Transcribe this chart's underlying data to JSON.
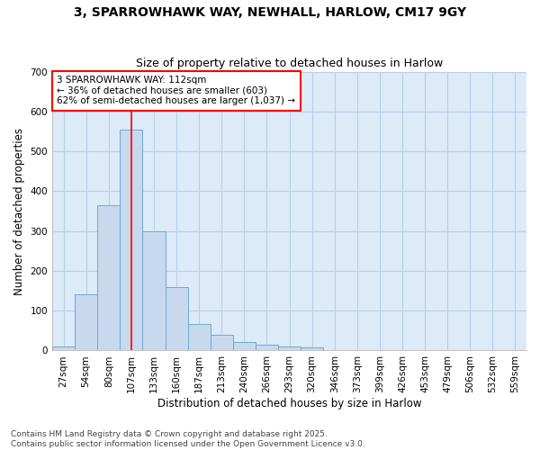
{
  "title_line1": "3, SPARROWHAWK WAY, NEWHALL, HARLOW, CM17 9GY",
  "title_line2": "Size of property relative to detached houses in Harlow",
  "xlabel": "Distribution of detached houses by size in Harlow",
  "ylabel": "Number of detached properties",
  "bar_color": "#c8d9ee",
  "bar_edge_color": "#6aaad4",
  "grid_color": "#b8cfe8",
  "plot_bg_color": "#ddeaf8",
  "fig_bg_color": "#ffffff",
  "categories": [
    "27sqm",
    "54sqm",
    "80sqm",
    "107sqm",
    "133sqm",
    "160sqm",
    "187sqm",
    "213sqm",
    "240sqm",
    "266sqm",
    "293sqm",
    "320sqm",
    "346sqm",
    "373sqm",
    "399sqm",
    "426sqm",
    "453sqm",
    "479sqm",
    "506sqm",
    "532sqm",
    "559sqm"
  ],
  "values": [
    10,
    140,
    365,
    555,
    300,
    160,
    67,
    40,
    22,
    15,
    10,
    7,
    2,
    0,
    0,
    0,
    0,
    0,
    0,
    0,
    0
  ],
  "ylim": [
    0,
    700
  ],
  "yticks": [
    0,
    100,
    200,
    300,
    400,
    500,
    600,
    700
  ],
  "property_line_x": 3,
  "annotation_text": "3 SPARROWHAWK WAY: 112sqm\n← 36% of detached houses are smaller (603)\n62% of semi-detached houses are larger (1,037) →",
  "annotation_box_color": "white",
  "annotation_box_edge_color": "red",
  "property_line_color": "red",
  "footer_line1": "Contains HM Land Registry data © Crown copyright and database right 2025.",
  "footer_line2": "Contains public sector information licensed under the Open Government Licence v3.0.",
  "title_fontsize": 10,
  "subtitle_fontsize": 9,
  "axis_label_fontsize": 8.5,
  "tick_fontsize": 7.5,
  "annotation_fontsize": 7.5,
  "footer_fontsize": 6.5
}
